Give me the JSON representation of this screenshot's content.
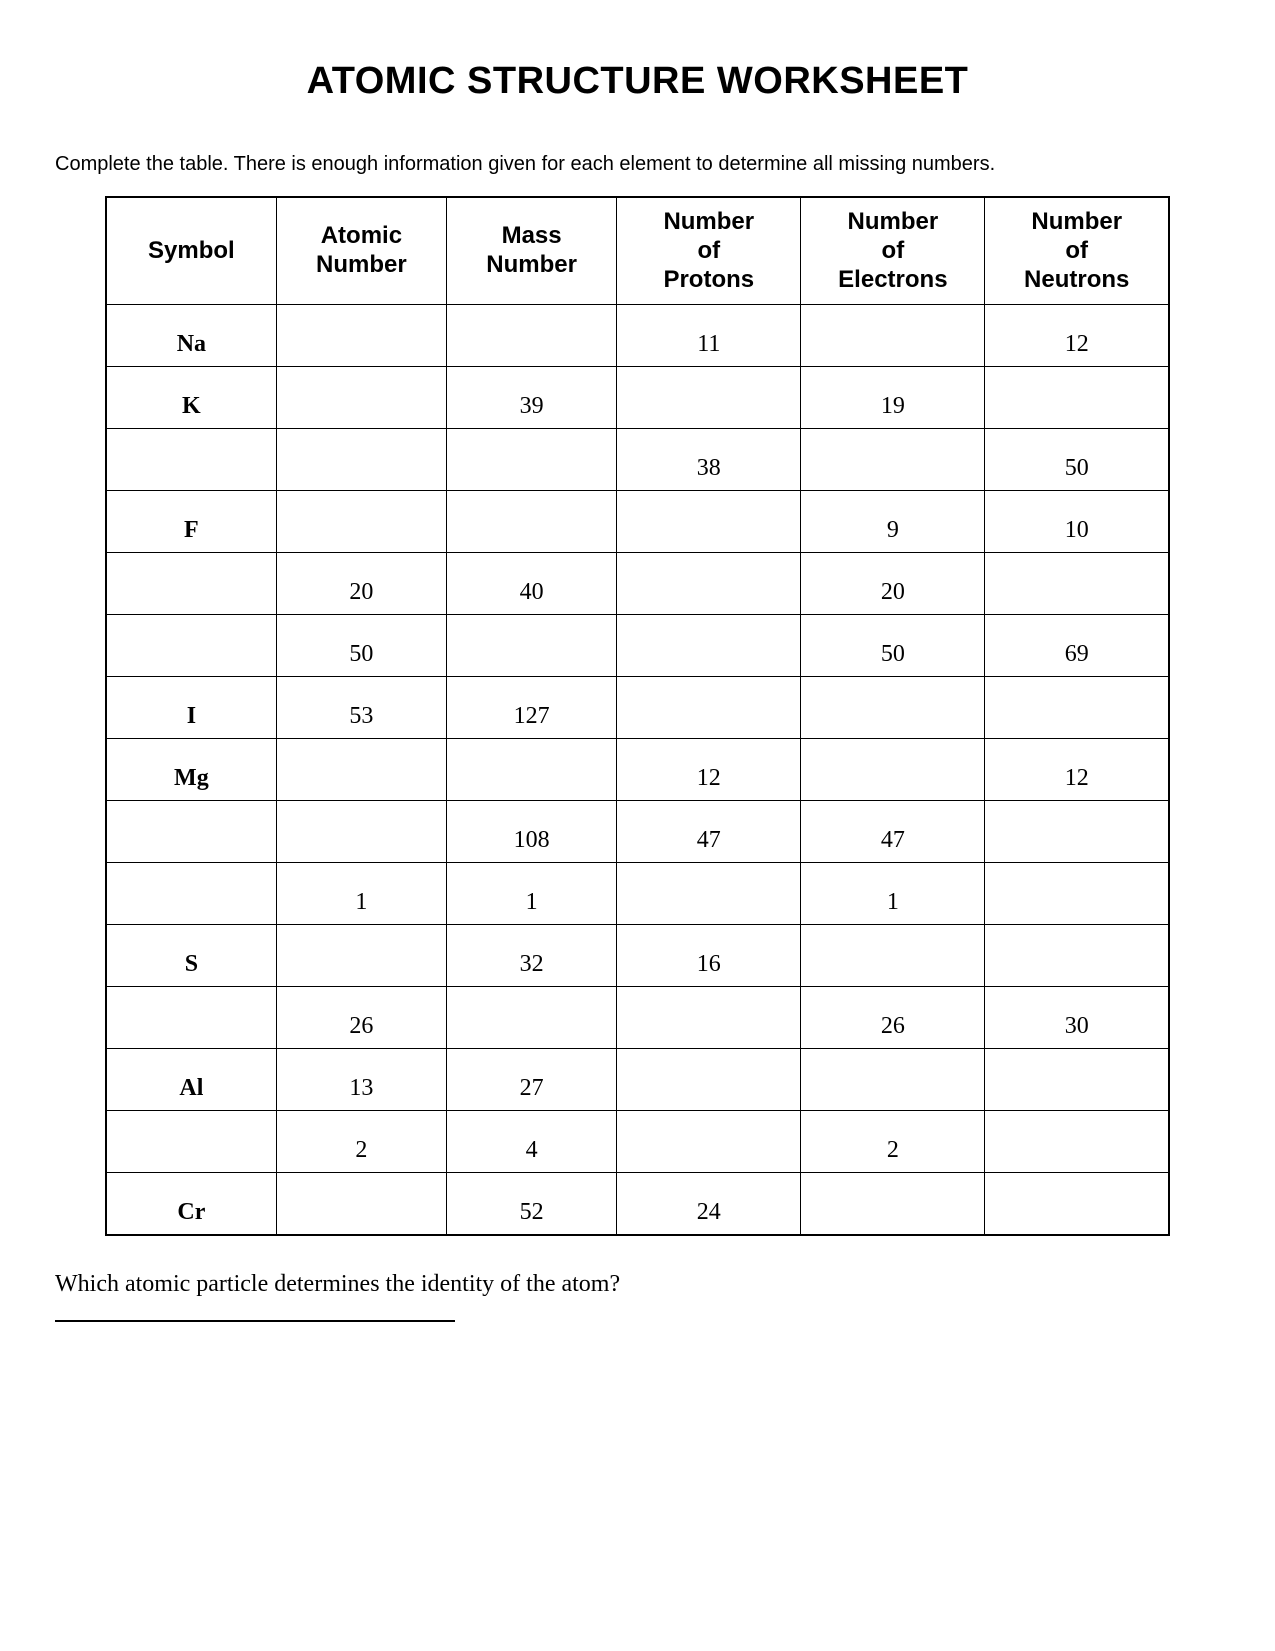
{
  "title": "ATOMIC STRUCTURE WORKSHEET",
  "instructions": "Complete the table.  There is enough information given for each element to determine all missing numbers.",
  "table": {
    "headers": {
      "symbol": "Symbol",
      "atomic_number": "Atomic Number",
      "mass_number": "Mass Number",
      "protons": "Number of Protons",
      "electrons": "Number of Electrons",
      "neutrons": "Number of Neutrons"
    },
    "rows": [
      {
        "symbol": "Na",
        "atomic": "",
        "mass": "",
        "protons": "11",
        "electrons": "",
        "neutrons": "12"
      },
      {
        "symbol": "K",
        "atomic": "",
        "mass": "39",
        "protons": "",
        "electrons": "19",
        "neutrons": ""
      },
      {
        "symbol": "",
        "atomic": "",
        "mass": "",
        "protons": "38",
        "electrons": "",
        "neutrons": "50"
      },
      {
        "symbol": "F",
        "atomic": "",
        "mass": "",
        "protons": "",
        "electrons": "9",
        "neutrons": "10"
      },
      {
        "symbol": "",
        "atomic": "20",
        "mass": "40",
        "protons": "",
        "electrons": "20",
        "neutrons": ""
      },
      {
        "symbol": "",
        "atomic": "50",
        "mass": "",
        "protons": "",
        "electrons": "50",
        "neutrons": "69"
      },
      {
        "symbol": "I",
        "atomic": "53",
        "mass": "127",
        "protons": "",
        "electrons": "",
        "neutrons": ""
      },
      {
        "symbol": "Mg",
        "atomic": "",
        "mass": "",
        "protons": "12",
        "electrons": "",
        "neutrons": "12"
      },
      {
        "symbol": "",
        "atomic": "",
        "mass": "108",
        "protons": "47",
        "electrons": "47",
        "neutrons": ""
      },
      {
        "symbol": "",
        "atomic": "1",
        "mass": "1",
        "protons": "",
        "electrons": "1",
        "neutrons": ""
      },
      {
        "symbol": "S",
        "atomic": "",
        "mass": "32",
        "protons": "16",
        "electrons": "",
        "neutrons": ""
      },
      {
        "symbol": "",
        "atomic": "26",
        "mass": "",
        "protons": "",
        "electrons": "26",
        "neutrons": "30"
      },
      {
        "symbol": "Al",
        "atomic": "13",
        "mass": "27",
        "protons": "",
        "electrons": "",
        "neutrons": ""
      },
      {
        "symbol": "",
        "atomic": "2",
        "mass": "4",
        "protons": "",
        "electrons": "2",
        "neutrons": ""
      },
      {
        "symbol": "Cr",
        "atomic": "",
        "mass": "52",
        "protons": "24",
        "electrons": "",
        "neutrons": ""
      }
    ]
  },
  "question": "Which atomic particle determines the identity of the atom?"
}
